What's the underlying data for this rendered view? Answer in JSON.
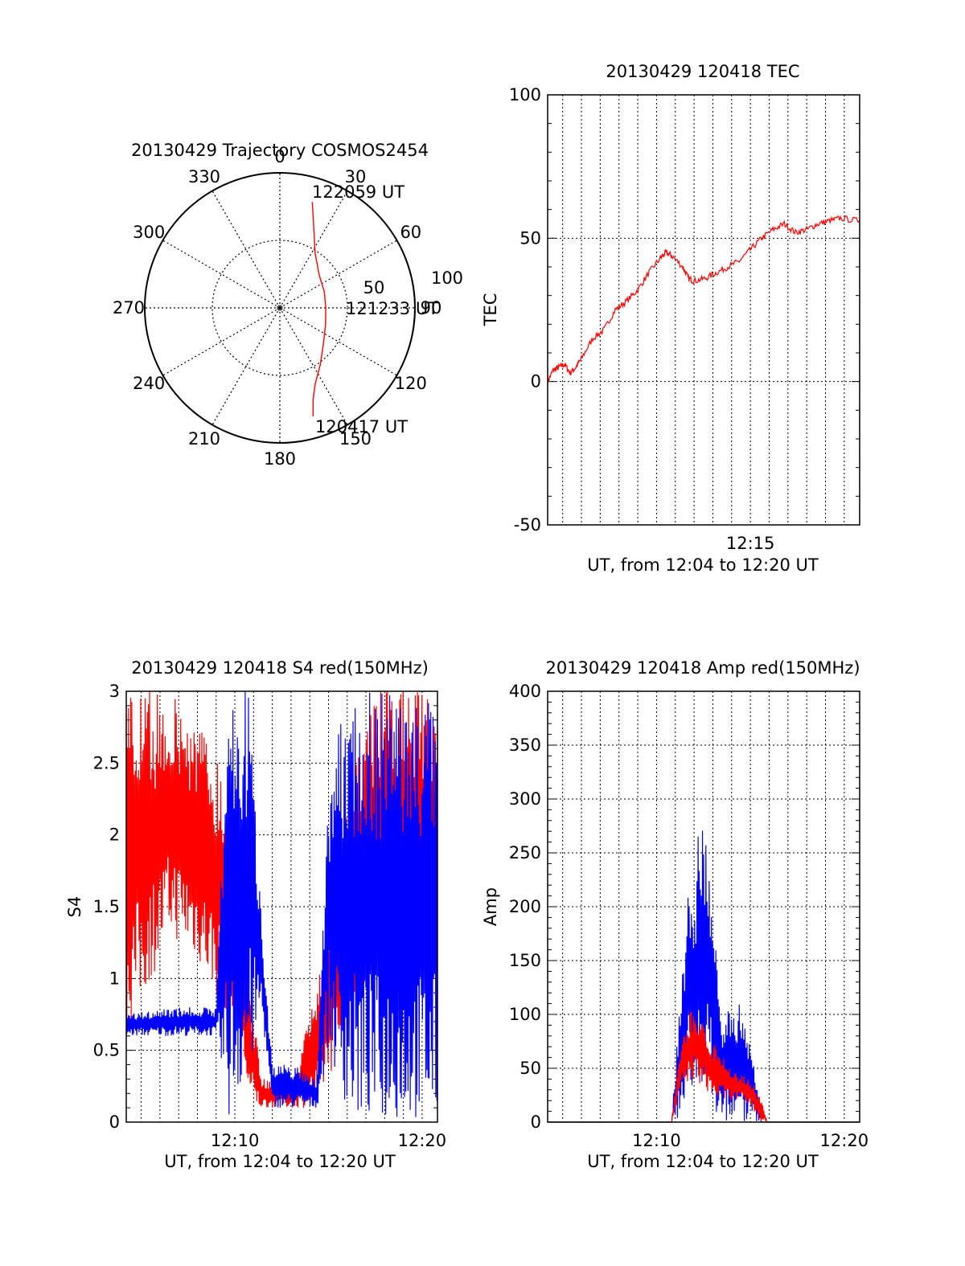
{
  "chart_data": [
    {
      "type": "polar",
      "title": "20130429 Trajectory COSMOS2454",
      "angle_labels": [
        "0",
        "30",
        "60",
        "90",
        "120",
        "150",
        "180",
        "210",
        "240",
        "270",
        "300",
        "330"
      ],
      "radial_labels": [
        "50",
        "100"
      ],
      "radial_max": 100,
      "grid": true,
      "series": [
        {
          "color": "#ff0000",
          "points_az_r": [
            [
              17,
              82
            ],
            [
              20,
              72
            ],
            [
              25,
              60
            ],
            [
              33,
              48
            ],
            [
              50,
              38
            ],
            [
              70,
              35
            ],
            [
              90,
              34
            ],
            [
              110,
              36
            ],
            [
              130,
              42
            ],
            [
              145,
              52
            ],
            [
              155,
              62
            ],
            [
              160,
              72
            ],
            [
              163,
              84
            ]
          ]
        }
      ],
      "annotations": [
        "122059 UT",
        "121233 UT",
        "120417 UT"
      ]
    },
    {
      "type": "line",
      "title": "20130429 120418 TEC",
      "xlabel": "UT, from 12:04 to 12:20 UT",
      "ylabel": "TEC",
      "xlim": [
        12.07,
        12.347
      ],
      "ylim": [
        -50,
        100
      ],
      "xticks": [
        {
          "v": 12.25,
          "label": "12:15"
        }
      ],
      "yticks": [
        "-50",
        "0",
        "50",
        "100"
      ],
      "grid": true,
      "series": [
        {
          "color": "#ff0000",
          "points": [
            [
              12.07,
              0
            ],
            [
              12.075,
              4
            ],
            [
              12.08,
              5
            ],
            [
              12.085,
              6
            ],
            [
              12.09,
              3
            ],
            [
              12.095,
              5
            ],
            [
              12.1,
              8
            ],
            [
              12.11,
              15
            ],
            [
              12.12,
              18
            ],
            [
              12.13,
              25
            ],
            [
              12.14,
              28
            ],
            [
              12.15,
              32
            ],
            [
              12.16,
              38
            ],
            [
              12.17,
              43
            ],
            [
              12.175,
              45
            ],
            [
              12.18,
              44
            ],
            [
              12.19,
              40
            ],
            [
              12.195,
              36
            ],
            [
              12.2,
              35
            ],
            [
              12.21,
              36
            ],
            [
              12.22,
              38
            ],
            [
              12.23,
              40
            ],
            [
              12.24,
              42
            ],
            [
              12.25,
              46
            ],
            [
              12.26,
              50
            ],
            [
              12.27,
              53
            ],
            [
              12.28,
              55
            ],
            [
              12.29,
              52
            ],
            [
              12.3,
              53
            ],
            [
              12.31,
              55
            ],
            [
              12.32,
              56
            ],
            [
              12.33,
              57
            ],
            [
              12.347,
              56
            ]
          ]
        }
      ]
    },
    {
      "type": "line",
      "title": "20130429 120418 S4 red(150MHz)",
      "xlabel": "UT, from 12:04 to 12:20 UT",
      "ylabel": "S4",
      "xlim": [
        12.07,
        12.347
      ],
      "ylim": [
        0,
        3
      ],
      "xticks": [
        {
          "v": 12.1667,
          "label": "12:10"
        },
        {
          "v": 12.3333,
          "label": "12:20"
        }
      ],
      "yticks": [
        "0",
        "0.5",
        "1",
        "1.5",
        "2",
        "2.5",
        "3"
      ],
      "grid": true,
      "series": [
        {
          "color": "#ff0000",
          "envelope": [
            [
              12.07,
              0.6,
              3
            ],
            [
              12.11,
              1.3,
              3
            ],
            [
              12.135,
              1.1,
              2.8
            ],
            [
              12.155,
              0.8,
              2.5
            ],
            [
              12.17,
              0.7,
              1.2
            ],
            [
              12.18,
              0.1,
              1.0
            ],
            [
              12.19,
              0.1,
              0.3
            ],
            [
              12.2,
              0.1,
              0.3
            ],
            [
              12.22,
              0.1,
              0.3
            ],
            [
              12.24,
              0.1,
              1.0
            ],
            [
              12.26,
              0.5,
              2.0
            ],
            [
              12.29,
              1.0,
              3
            ],
            [
              12.32,
              1.0,
              3
            ],
            [
              12.347,
              1.0,
              3
            ]
          ]
        },
        {
          "color": "#0000ff",
          "envelope": [
            [
              12.07,
              0.6,
              0.75
            ],
            [
              12.11,
              0.6,
              0.8
            ],
            [
              12.15,
              0.6,
              0.8
            ],
            [
              12.16,
              0.0,
              3
            ],
            [
              12.18,
              0.3,
              3
            ],
            [
              12.19,
              0.8,
              1.5
            ],
            [
              12.2,
              0.1,
              0.4
            ],
            [
              12.22,
              0.1,
              0.4
            ],
            [
              12.24,
              0.1,
              0.3
            ],
            [
              12.25,
              0.5,
              2.5
            ],
            [
              12.27,
              0.0,
              3
            ],
            [
              12.347,
              0.0,
              3
            ]
          ]
        }
      ]
    },
    {
      "type": "line",
      "title": "20130429 120418 Amp red(150MHz)",
      "xlabel": "UT, from 12:04 to 12:20 UT",
      "ylabel": "Amp",
      "xlim": [
        12.07,
        12.347
      ],
      "ylim": [
        0,
        400
      ],
      "xticks": [
        {
          "v": 12.1667,
          "label": "12:10"
        },
        {
          "v": 12.3333,
          "label": "12:20"
        }
      ],
      "yticks": [
        "0",
        "50",
        "100",
        "150",
        "200",
        "250",
        "300",
        "350",
        "400"
      ],
      "grid": true,
      "series": [
        {
          "color": "#0000ff",
          "envelope": [
            [
              12.07,
              0,
              0
            ],
            [
              12.18,
              0,
              0
            ],
            [
              12.19,
              0,
              150
            ],
            [
              12.195,
              60,
              220
            ],
            [
              12.2,
              0,
              210
            ],
            [
              12.205,
              20,
              300
            ],
            [
              12.21,
              50,
              260
            ],
            [
              12.215,
              30,
              230
            ],
            [
              12.22,
              0,
              150
            ],
            [
              12.225,
              0,
              80
            ],
            [
              12.23,
              0,
              120
            ],
            [
              12.24,
              0,
              110
            ],
            [
              12.25,
              0,
              85
            ],
            [
              12.255,
              0,
              40
            ],
            [
              12.26,
              0,
              0
            ],
            [
              12.347,
              0,
              0
            ]
          ]
        },
        {
          "color": "#ff0000",
          "envelope": [
            [
              12.07,
              0,
              0
            ],
            [
              12.18,
              0,
              0
            ],
            [
              12.19,
              30,
              90
            ],
            [
              12.2,
              40,
              110
            ],
            [
              12.21,
              30,
              90
            ],
            [
              12.22,
              20,
              70
            ],
            [
              12.23,
              20,
              55
            ],
            [
              12.24,
              20,
              45
            ],
            [
              12.25,
              15,
              40
            ],
            [
              12.26,
              0,
              20
            ],
            [
              12.265,
              0,
              0
            ],
            [
              12.347,
              0,
              0
            ]
          ]
        }
      ]
    }
  ]
}
